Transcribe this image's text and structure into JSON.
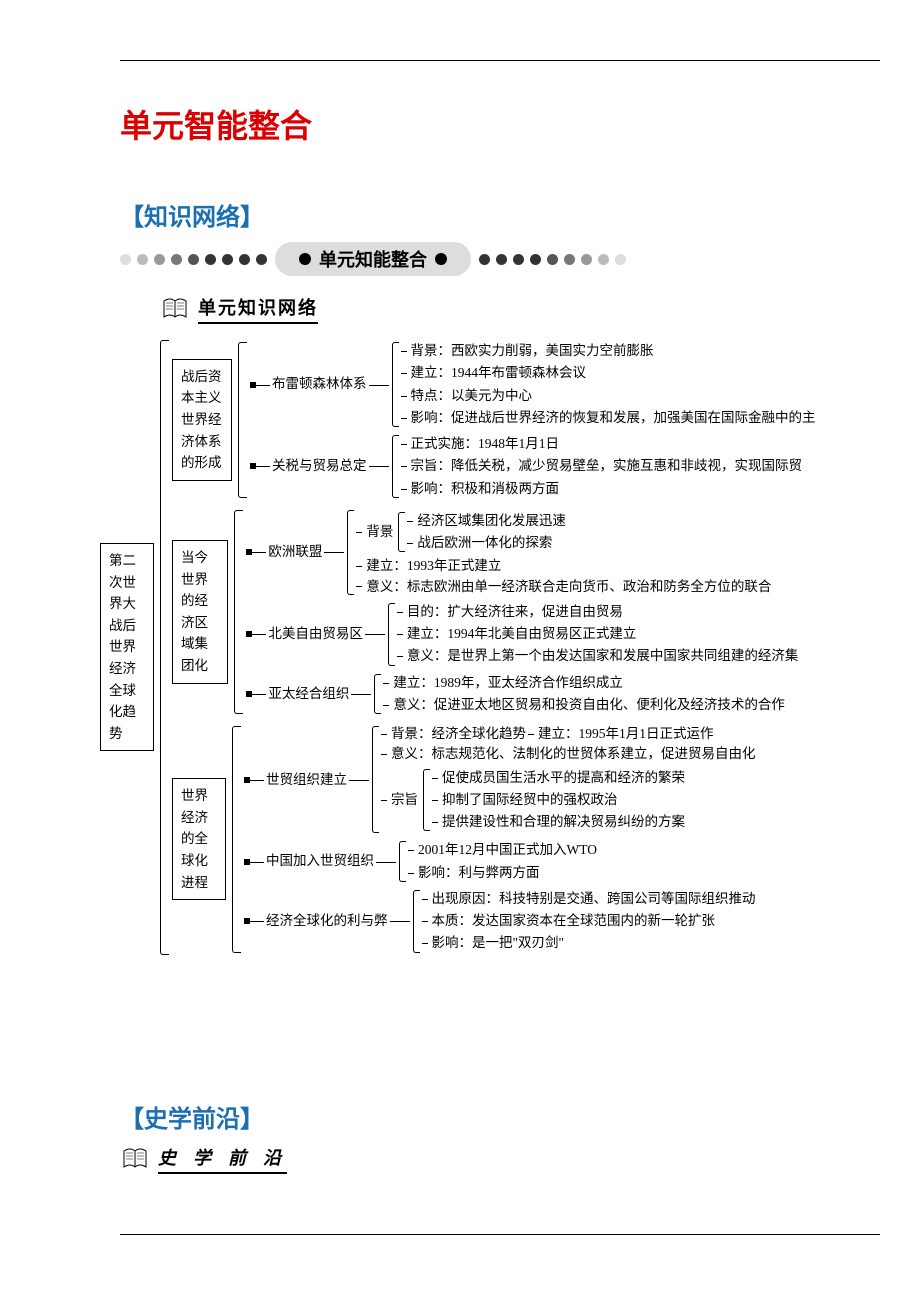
{
  "colors": {
    "title": "#d00",
    "section": "#1a6fb0",
    "dot_dark": "#333333",
    "dot_fade": [
      "#333333",
      "#333333",
      "#333333",
      "#333333",
      "#555555",
      "#777777",
      "#999999",
      "#bbbbbb",
      "#dddddd"
    ],
    "pill_bg": "#dddddd",
    "text": "#000000",
    "page_bg": "#ffffff"
  },
  "typography": {
    "title_fontsize": 32,
    "section_fontsize": 24,
    "body_fontsize": 13.5,
    "subhead_fontsize": 18
  },
  "headings": {
    "main": "单元智能整合",
    "section1": "【知识网络】",
    "section2": "【史学前沿】",
    "banner": "单元知能整合",
    "subhead1": "单元知识网络",
    "subhead2": "史 学 前 沿"
  },
  "tree": {
    "root": "第二次世界大战后世界经济全球化趋势",
    "b1": {
      "label": "战后资本主义世界经济体系的形成",
      "c1": {
        "label": "布雷顿森林体系",
        "leaves": [
          "背景：西欧实力削弱，美国实力空前膨胀",
          "建立：1944年布雷顿森林会议",
          "特点：以美元为中心",
          "影响：促进战后世界经济的恢复和发展，加强美国在国际金融中的主"
        ]
      },
      "c2": {
        "label": "关税与贸易总定",
        "leaves": [
          "正式实施：1948年1月1日",
          "宗旨：降低关税，减少贸易壁垒，实施互惠和非歧视，实现国际贸",
          "影响：积极和消极两方面"
        ]
      }
    },
    "b2": {
      "label": "当今世界的经济区域集团化",
      "c1": {
        "label": "欧洲联盟",
        "bg_label": "背景",
        "bg_leaves": [
          "经济区域集团化发展迅速",
          "战后欧洲一体化的探索"
        ],
        "leaves": [
          "建立：1993年正式建立",
          "意义：标志欧洲由单一经济联合走向货币、政治和防务全方位的联合"
        ]
      },
      "c2": {
        "label": "北美自由贸易区",
        "leaves": [
          "目的：扩大经济往来，促进自由贸易",
          "建立：1994年北美自由贸易区正式建立",
          "意义：是世界上第一个由发达国家和发展中国家共同组建的经济集"
        ]
      },
      "c3": {
        "label": "亚太经合组织",
        "leaves": [
          "建立：1989年，亚太经济合作组织成立",
          "意义：促进亚太地区贸易和投资自由化、便利化及经济技术的合作"
        ]
      }
    },
    "b3": {
      "label": "世界经济的全球化进程",
      "c1": {
        "label": "世贸组织建立",
        "leaves_pre": [
          "背景：经济全球化趋势",
          "建立：1995年1月1日正式运作",
          "意义：标志规范化、法制化的世贸体系建立，促进贸易自由化"
        ],
        "zz_label": "宗旨",
        "zz_leaves": [
          "促使成员国生活水平的提高和经济的繁荣",
          "抑制了国际经贸中的强权政治",
          "提供建设性和合理的解决贸易纠纷的方案"
        ]
      },
      "c2": {
        "label": "中国加入世贸组织",
        "leaves": [
          "2001年12月中国正式加入WTO",
          "影响：利与弊两方面"
        ]
      },
      "c3": {
        "label": "经济全球化的利与弊",
        "leaves": [
          "出现原因：科技特别是交通、跨国公司等国际组织推动",
          "本质：发达国家资本在全球范围内的新一轮扩张",
          "影响：是一把\"双刃剑\""
        ]
      }
    }
  }
}
